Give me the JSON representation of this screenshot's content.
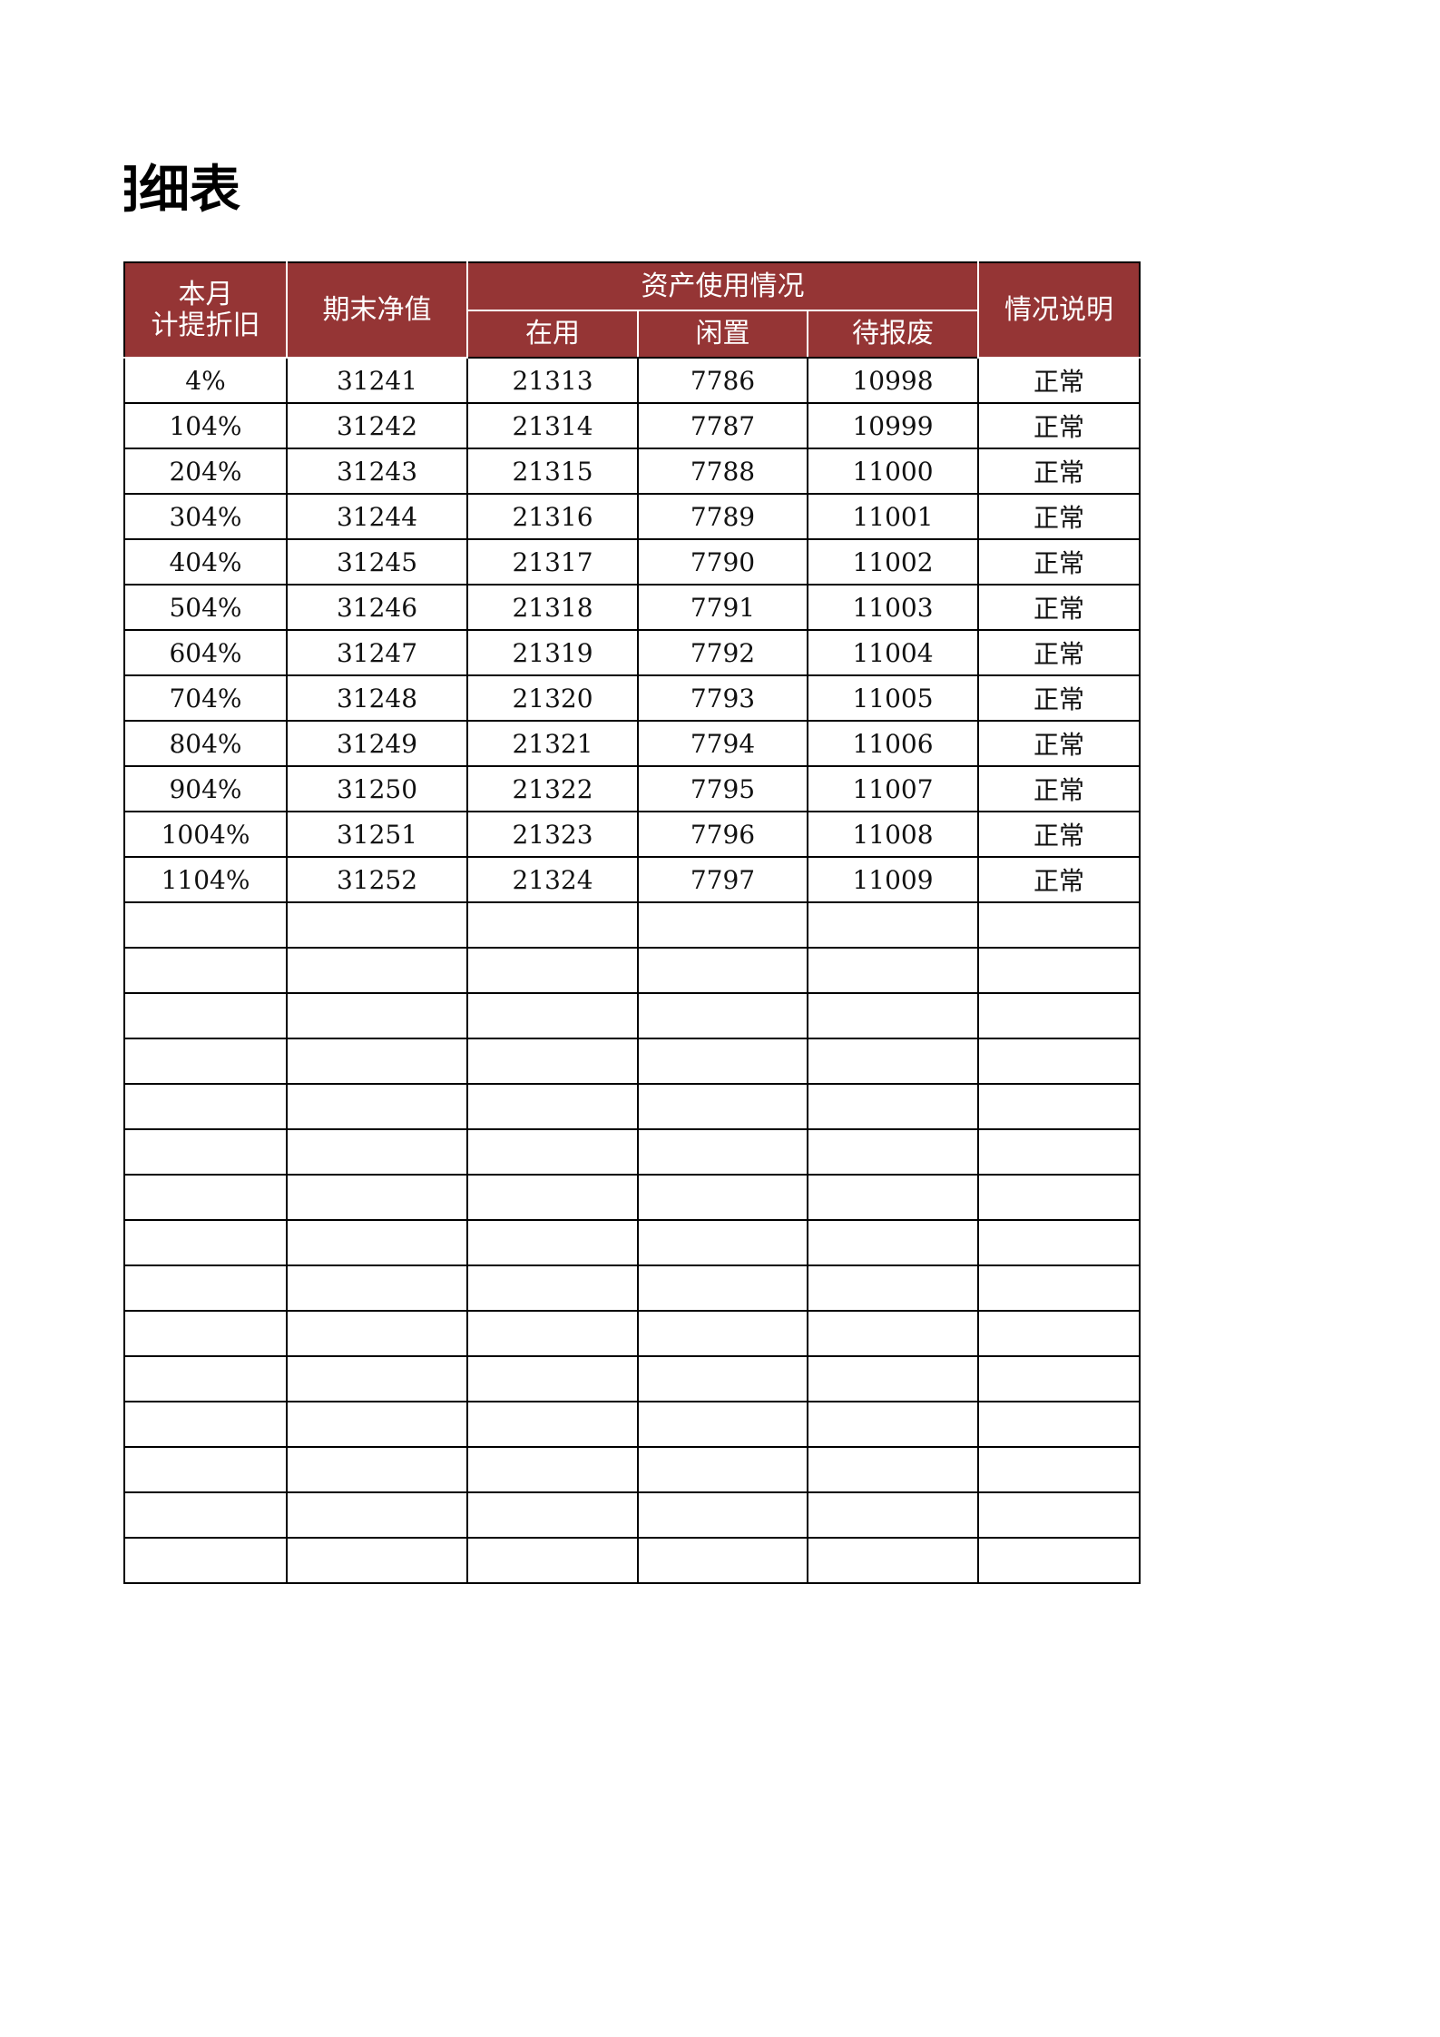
{
  "title": "明细表",
  "header": {
    "col1": "本月\n计提折旧",
    "col1_line1": "本月",
    "col1_line2": "计提折旧",
    "col2": "期末净值",
    "group": "资产使用情况",
    "sub1": "在用",
    "sub2": "闲置",
    "sub3": "待报废",
    "col6": "情况说明"
  },
  "colors": {
    "header_bg": "#953535",
    "header_text": "#ffffff",
    "border": "#000000"
  },
  "rows": [
    [
      "4%",
      "31241",
      "21313",
      "7786",
      "10998",
      "正常"
    ],
    [
      "104%",
      "31242",
      "21314",
      "7787",
      "10999",
      "正常"
    ],
    [
      "204%",
      "31243",
      "21315",
      "7788",
      "11000",
      "正常"
    ],
    [
      "304%",
      "31244",
      "21316",
      "7789",
      "11001",
      "正常"
    ],
    [
      "404%",
      "31245",
      "21317",
      "7790",
      "11002",
      "正常"
    ],
    [
      "504%",
      "31246",
      "21318",
      "7791",
      "11003",
      "正常"
    ],
    [
      "604%",
      "31247",
      "21319",
      "7792",
      "11004",
      "正常"
    ],
    [
      "704%",
      "31248",
      "21320",
      "7793",
      "11005",
      "正常"
    ],
    [
      "804%",
      "31249",
      "21321",
      "7794",
      "11006",
      "正常"
    ],
    [
      "904%",
      "31250",
      "21322",
      "7795",
      "11007",
      "正常"
    ],
    [
      "1004%",
      "31251",
      "21323",
      "7796",
      "11008",
      "正常"
    ],
    [
      "1104%",
      "31252",
      "21324",
      "7797",
      "11009",
      "正常"
    ]
  ],
  "empty_rows": 15
}
